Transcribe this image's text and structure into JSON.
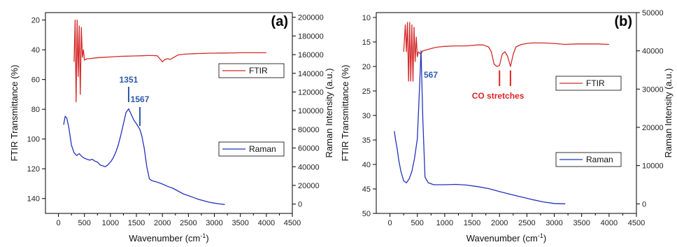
{
  "chart_data": [
    {
      "type": "line",
      "panel_label": "(a)",
      "xlabel": "Wavenumber (cm",
      "xlabel_sup": "-1",
      "xlabel_end": ")",
      "ylabel_left": "FTIR Transmittance (%)",
      "ylabel_right": "Raman Intensity (a.u.)",
      "xlim": [
        -250,
        4500
      ],
      "ylim_left": [
        150,
        15
      ],
      "ylim_right": [
        -10000,
        205000
      ],
      "xticks": [
        "0",
        "500",
        "1000",
        "1500",
        "2000",
        "2500",
        "3000",
        "3500",
        "4000",
        "4500"
      ],
      "yticks_left": [
        "20",
        "40",
        "60",
        "80",
        "100",
        "120",
        "140"
      ],
      "yticks_right": [
        "0",
        "20000",
        "40000",
        "60000",
        "80000",
        "100000",
        "120000",
        "140000",
        "160000",
        "180000",
        "200000"
      ],
      "legend": [
        {
          "name": "FTIR",
          "color": "#d42a2a"
        },
        {
          "name": "Raman",
          "color": "#2233bb"
        }
      ],
      "annotations": [
        {
          "text": "1351",
          "x": 1351,
          "color": "#2e5aa8"
        },
        {
          "text": "1567",
          "x": 1567,
          "color": "#2e5aa8"
        }
      ],
      "series": [
        {
          "name": "FTIR",
          "axis": "left",
          "color": "#d42a2a",
          "x": [
            300,
            320,
            340,
            360,
            380,
            400,
            420,
            440,
            460,
            480,
            500,
            550,
            600,
            700,
            800,
            900,
            1000,
            1100,
            1200,
            1300,
            1400,
            1500,
            1600,
            1700,
            1800,
            1900,
            1950,
            2000,
            2050,
            2100,
            2150,
            2200,
            2300,
            2400,
            2500,
            2600,
            2700,
            2800,
            2900,
            3000,
            3100,
            3200,
            3300,
            3400,
            3500,
            3600,
            3700,
            3800,
            3900,
            4000
          ],
          "y": [
            48,
            20,
            75,
            20,
            58,
            24,
            70,
            25,
            45,
            40,
            47,
            46,
            46,
            45.5,
            45.2,
            45,
            44.8,
            44.6,
            44.4,
            44.3,
            44.2,
            44.1,
            44,
            43.9,
            43.9,
            44,
            46,
            48,
            46.5,
            46,
            46.5,
            45.5,
            43.5,
            43,
            42.8,
            42.6,
            42.5,
            42.4,
            42.3,
            42.3,
            42.2,
            42.2,
            42.1,
            42.1,
            42,
            42,
            42,
            42,
            42,
            42
          ]
        },
        {
          "name": "Raman",
          "axis": "right",
          "color": "#2233bb",
          "x": [
            100,
            130,
            160,
            200,
            250,
            300,
            350,
            400,
            450,
            500,
            550,
            600,
            650,
            700,
            750,
            800,
            850,
            900,
            950,
            1000,
            1050,
            1100,
            1150,
            1200,
            1250,
            1300,
            1351,
            1400,
            1450,
            1500,
            1567,
            1600,
            1650,
            1700,
            1750,
            1800,
            1900,
            2000,
            2100,
            2200,
            2300,
            2400,
            2500,
            2600,
            2700,
            2800,
            2900,
            3000,
            3100,
            3200
          ],
          "y": [
            85000,
            94000,
            92000,
            82000,
            63000,
            55000,
            52000,
            54000,
            51000,
            49000,
            48000,
            47000,
            48000,
            46000,
            45000,
            42000,
            41000,
            40000,
            42000,
            45000,
            49000,
            55000,
            63000,
            74000,
            86000,
            98000,
            102000,
            96000,
            90000,
            86000,
            80000,
            74000,
            60000,
            40000,
            27000,
            25000,
            23500,
            21500,
            19000,
            17000,
            14000,
            11000,
            9000,
            7000,
            5000,
            3500,
            2000,
            1000,
            200,
            -500
          ]
        }
      ]
    },
    {
      "type": "line",
      "panel_label": "(b)",
      "xlabel": "Wavenumber (cm",
      "xlabel_sup": "-1",
      "xlabel_end": ")",
      "ylabel_left": "FTIR Transmittance (%)",
      "ylabel_right": "Raman Intensity (a.u.)",
      "xlim": [
        -250,
        4500
      ],
      "ylim_left": [
        50,
        9
      ],
      "ylim_right": [
        -2500,
        50000
      ],
      "xticks": [
        "0",
        "500",
        "1000",
        "1500",
        "2000",
        "2500",
        "3000",
        "3500",
        "4000",
        "4500"
      ],
      "yticks_left": [
        "10",
        "15",
        "20",
        "25",
        "30",
        "35",
        "40",
        "45",
        "50"
      ],
      "yticks_right": [
        "0",
        "10000",
        "20000",
        "30000",
        "40000",
        "50000"
      ],
      "legend": [
        {
          "name": "FTIR",
          "color": "#d42a2a"
        },
        {
          "name": "Raman",
          "color": "#2233bb"
        }
      ],
      "annotations": [
        {
          "text": "567",
          "x": 567,
          "color": "#2e5aa8"
        },
        {
          "text": "CO stretches",
          "x": 2100,
          "color": "#e02424"
        }
      ],
      "series": [
        {
          "name": "FTIR",
          "axis": "left",
          "color": "#d42a2a",
          "x": [
            250,
            280,
            300,
            320,
            340,
            360,
            380,
            400,
            420,
            440,
            460,
            480,
            500,
            520,
            560,
            600,
            700,
            800,
            900,
            1000,
            1200,
            1400,
            1600,
            1700,
            1800,
            1850,
            1900,
            1950,
            2000,
            2050,
            2100,
            2150,
            2200,
            2250,
            2300,
            2400,
            2500,
            2600,
            2700,
            2800,
            3000,
            3200,
            3400,
            3600,
            3800,
            4000
          ],
          "y": [
            17,
            11.5,
            17,
            11,
            23,
            11,
            23,
            11.5,
            23,
            12,
            19,
            14,
            18,
            17,
            17.5,
            16.8,
            16.5,
            16.2,
            16,
            15.9,
            15.8,
            15.8,
            15.6,
            15.6,
            16,
            17,
            19.5,
            20,
            19.8,
            17.5,
            17,
            18,
            20,
            17.5,
            16,
            15.5,
            15.3,
            15.2,
            15.2,
            15.2,
            15.3,
            15.5,
            15.4,
            15.4,
            15.4,
            15.5
          ]
        },
        {
          "name": "Raman",
          "axis": "right",
          "color": "#2233bb",
          "x": [
            80,
            100,
            130,
            160,
            200,
            250,
            300,
            350,
            400,
            450,
            500,
            530,
            567,
            600,
            640,
            700,
            800,
            1000,
            1200,
            1400,
            1600,
            1800,
            2000,
            2200,
            2400,
            2600,
            2800,
            3000,
            3200
          ],
          "y": [
            19000,
            17000,
            14500,
            11500,
            8500,
            6000,
            5500,
            6500,
            8500,
            12000,
            17000,
            27000,
            40000,
            22000,
            7000,
            5500,
            5000,
            5000,
            5100,
            4900,
            4500,
            4000,
            3200,
            2500,
            1800,
            1100,
            500,
            100,
            0
          ]
        }
      ]
    }
  ]
}
